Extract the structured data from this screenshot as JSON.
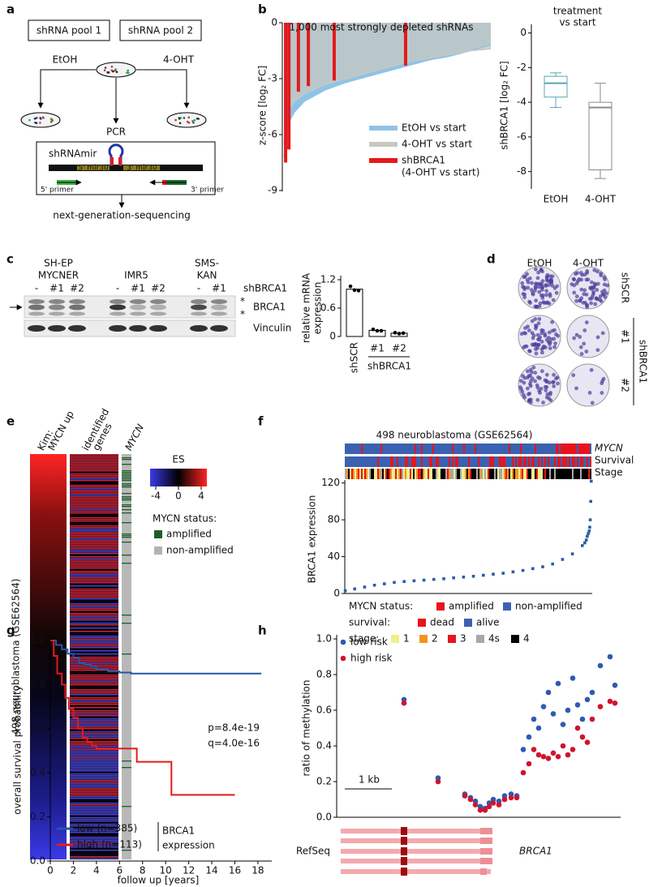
{
  "figure_labels": [
    "a",
    "b",
    "c",
    "d",
    "e",
    "f",
    "g",
    "h"
  ],
  "a": {
    "pool1": "shRNA pool 1",
    "pool2": "shRNA pool 2",
    "etoh": "EtOH",
    "oht": "4-OHT",
    "pcr": "PCR",
    "construct": "shRNAmir",
    "mir5": "5' mir30",
    "mir3": "3' mir30",
    "primer5": "5' primer",
    "primer3": "3' primer",
    "ngs": "next-generation-sequencing"
  },
  "c": {
    "cell_lines": [
      [
        "SH-EP",
        "MYCNER"
      ],
      [
        "IMR5"
      ],
      [
        "SMS-",
        "KAN"
      ]
    ],
    "lanes": [
      "-",
      "#1",
      "#2",
      "-",
      "#1",
      "#2",
      "-",
      "#1"
    ],
    "lane_group": "shBRCA1",
    "bands": [
      "BRCA1",
      "Vinculin"
    ],
    "stars": [
      "*",
      "*"
    ]
  },
  "d": {
    "columns": [
      "EtOH",
      "4-OHT"
    ],
    "rows": [
      "shSCR",
      "#1",
      "#2"
    ],
    "group": "shBRCA1"
  },
  "e": {
    "columns": [
      [
        "Kim:",
        "MYCN up"
      ],
      [
        "identified",
        "genes"
      ],
      [
        "MYCN"
      ]
    ],
    "y_label": "498 neuroblastoma (GSE62564)",
    "colorbar_title": "ES",
    "colorbar_lim": [
      -5,
      5
    ],
    "colorbar_ticks": [
      -4,
      0,
      4
    ],
    "status_title": "MYCN status:",
    "status": [
      {
        "name": "amplified",
        "color": "#1e5c2a"
      },
      {
        "name": "non-amplified",
        "color": "#b3b3b3"
      }
    ]
  },
  "chart_data": [
    {
      "type": "area",
      "title": "1,000 most strongly depleted shRNAs",
      "y_label": "z-score [log₂ FC]",
      "xlim": [
        0,
        1000
      ],
      "ylim": [
        -9,
        0
      ],
      "yticks": [
        0,
        -3,
        -6,
        -9
      ],
      "series": [
        {
          "name": "EtOH vs start",
          "color": "#8fc3e6",
          "x": [
            1,
            10,
            25,
            50,
            100,
            200,
            300,
            400,
            500,
            600,
            700,
            800,
            900,
            1000
          ],
          "values": [
            -7.2,
            -6.0,
            -5.3,
            -4.8,
            -4.2,
            -3.6,
            -3.2,
            -2.9,
            -2.6,
            -2.3,
            -2.0,
            -1.8,
            -1.5,
            -1.2
          ]
        },
        {
          "name": "4-OHT vs start",
          "color": "#c8c8c0",
          "x": [
            1,
            10,
            25,
            50,
            100,
            200,
            300,
            400,
            500,
            600,
            700,
            800,
            900,
            1000
          ],
          "values": [
            -6.5,
            -5.2,
            -4.6,
            -4.2,
            -3.8,
            -3.3,
            -3.0,
            -2.7,
            -2.4,
            -2.1,
            -1.9,
            -1.7,
            -1.5,
            -1.4
          ]
        },
        {
          "name": "shBRCA1",
          "note": "(4-OHT vs start)",
          "color": "#e31a1c",
          "x": [
            8,
            24,
            70,
            118,
            243,
            588
          ],
          "values": [
            -7.5,
            -6.8,
            -3.7,
            -3.4,
            -3.1,
            -2.3
          ]
        }
      ]
    },
    {
      "type": "box",
      "title": [
        "treatment",
        "vs start"
      ],
      "y_label": "shBRCA1 [log₂ FC]",
      "ylim": [
        -9,
        0.5
      ],
      "yticks": [
        0,
        -2,
        -4,
        -6,
        -8
      ],
      "categories": [
        "EtOH",
        "4-OHT"
      ],
      "colors": [
        "#5aa4b5",
        "#8a8a8a"
      ],
      "boxes": [
        {
          "min": -4.3,
          "q1": -3.7,
          "median": -2.9,
          "q3": -2.5,
          "max": -2.3
        },
        {
          "min": -8.4,
          "q1": -7.9,
          "median": -4.3,
          "q3": -4.0,
          "max": -2.9
        }
      ]
    },
    {
      "type": "bar",
      "y_label": [
        "relative mRNA",
        "expression"
      ],
      "ylim": [
        0,
        1.2
      ],
      "yticks": [
        0,
        0.6,
        1.2
      ],
      "categories": [
        "shSCR",
        "#1",
        "#2"
      ],
      "group_label": "shBRCA1",
      "values": [
        1.0,
        0.13,
        0.07
      ],
      "points": [
        [
          1.06,
          0.98,
          0.97
        ],
        [
          0.15,
          0.12,
          0.12
        ],
        [
          0.08,
          0.06,
          0.07
        ]
      ],
      "color": "#ffffff"
    },
    {
      "type": "scatter",
      "title": "498 neuroblastoma (GSE62564)",
      "tracks": [
        "MYCN",
        "Survival",
        "Stage"
      ],
      "y_label": "BRCA1 expression",
      "xlim": [
        0,
        500
      ],
      "ylim": [
        0,
        125
      ],
      "yticks": [
        0,
        40,
        80,
        120
      ],
      "color": "#2a5bab",
      "x": [
        1,
        20,
        40,
        60,
        80,
        100,
        120,
        140,
        160,
        180,
        200,
        220,
        240,
        260,
        280,
        300,
        320,
        340,
        360,
        380,
        400,
        420,
        440,
        460,
        480,
        485,
        488,
        490,
        492,
        494,
        495,
        496,
        497,
        498
      ],
      "values": [
        3,
        5,
        7,
        9,
        10.5,
        12,
        13,
        13.8,
        14.5,
        15.3,
        16,
        17,
        17.8,
        18.7,
        19.8,
        21,
        22,
        23.5,
        25,
        27,
        29,
        32,
        37,
        43,
        52,
        55,
        58,
        62,
        65,
        68,
        72,
        80,
        100,
        122
      ],
      "legend": {
        "mycn": {
          "title": "MYCN status:",
          "items": [
            {
              "name": "amplified",
              "color": "#e8141c"
            },
            {
              "name": "non-amplified",
              "color": "#3a62b0"
            }
          ]
        },
        "survival": {
          "title": "survival:",
          "items": [
            {
              "name": "dead",
              "color": "#e8141c"
            },
            {
              "name": "alive",
              "color": "#3a62b0"
            }
          ]
        },
        "stage": {
          "title": "stage:",
          "items": [
            {
              "name": "1",
              "color": "#eef08a"
            },
            {
              "name": "2",
              "color": "#f39321"
            },
            {
              "name": "3",
              "color": "#e8141c"
            },
            {
              "name": "4s",
              "color": "#a8a8a8"
            },
            {
              "name": "4",
              "color": "#000000"
            }
          ]
        }
      }
    },
    {
      "type": "line",
      "step": true,
      "x_label": "follow up [years]",
      "y_label": "overall survival probability",
      "xlim": [
        0,
        19.2
      ],
      "ylim": [
        0,
        1
      ],
      "xticks": [
        0,
        2,
        4,
        6,
        8,
        10,
        12,
        14,
        16,
        18
      ],
      "yticks": [
        {
          "value": 0,
          "label": "0.0"
        },
        0.2,
        0.4,
        0.6,
        0.8,
        {
          "value": 1,
          "label": "1.0"
        }
      ],
      "annotations": [
        "p=8.4e-19",
        "q=4.0e-16"
      ],
      "legend_title": [
        "BRCA1",
        "expression"
      ],
      "series": [
        {
          "name": "low (n=385)",
          "color": "#2456a8",
          "x": [
            0,
            0.5,
            1,
            1.5,
            2,
            2.5,
            3,
            3.5,
            4,
            5,
            6,
            7,
            8,
            18.3
          ],
          "values": [
            1,
            0.98,
            0.96,
            0.94,
            0.92,
            0.9,
            0.89,
            0.88,
            0.87,
            0.86,
            0.855,
            0.85,
            0.85,
            0.85
          ]
        },
        {
          "name": "high (n=113)",
          "color": "#e31a1c",
          "x": [
            0,
            0.3,
            0.6,
            1,
            1.3,
            1.6,
            2,
            2.4,
            2.8,
            3.2,
            3.6,
            4,
            7.5,
            10.5,
            16
          ],
          "values": [
            1,
            0.93,
            0.85,
            0.8,
            0.74,
            0.69,
            0.65,
            0.6,
            0.56,
            0.54,
            0.52,
            0.51,
            0.45,
            0.3,
            0.3
          ]
        }
      ]
    },
    {
      "type": "scatter",
      "y_label": "ratio of methylation",
      "xlim": [
        0,
        350
      ],
      "ylim": [
        0,
        1
      ],
      "yticks": [
        {
          "value": 0,
          "label": "0.0"
        },
        0.2,
        0.4,
        0.6,
        0.8,
        {
          "value": 1,
          "label": "1.0"
        }
      ],
      "scale_bar": "1 kb",
      "track_label": "RefSeq",
      "gene": "BRCA1",
      "x": [
        83,
        125,
        158,
        165,
        171,
        177,
        183,
        188,
        193,
        200,
        207,
        215,
        222,
        230,
        237,
        243,
        249,
        255,
        261,
        267,
        273,
        279,
        285,
        291,
        297,
        303,
        309,
        315,
        325,
        337,
        343
      ],
      "series": [
        {
          "name": "low risk",
          "color": "#2e59b5",
          "values": [
            0.66,
            0.22,
            0.13,
            0.11,
            0.09,
            0.06,
            0.05,
            0.08,
            0.1,
            0.09,
            0.12,
            0.13,
            0.12,
            0.38,
            0.45,
            0.55,
            0.5,
            0.62,
            0.7,
            0.58,
            0.75,
            0.52,
            0.6,
            0.78,
            0.63,
            0.55,
            0.66,
            0.7,
            0.85,
            0.9,
            0.74
          ]
        },
        {
          "name": "high risk",
          "color": "#d0142c",
          "values": [
            0.64,
            0.2,
            0.12,
            0.1,
            0.07,
            0.04,
            0.04,
            0.06,
            0.08,
            0.07,
            0.1,
            0.11,
            0.11,
            0.25,
            0.3,
            0.38,
            0.35,
            0.34,
            0.33,
            0.36,
            0.34,
            0.4,
            0.35,
            0.38,
            0.5,
            0.45,
            0.42,
            0.55,
            0.62,
            0.65,
            0.64
          ]
        }
      ]
    }
  ]
}
